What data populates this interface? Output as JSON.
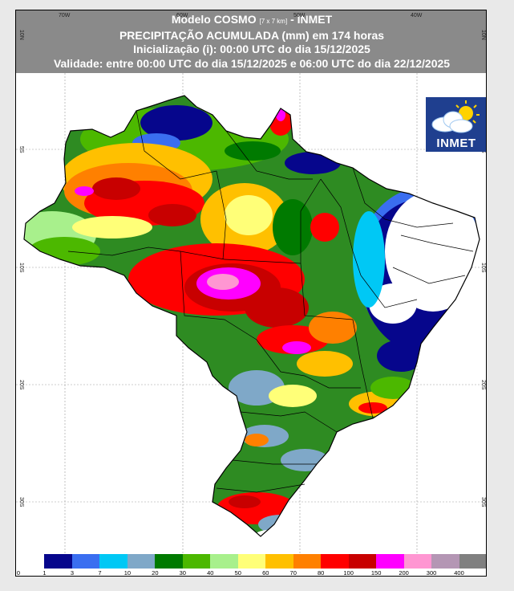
{
  "header": {
    "line1_prefix": "Modelo COSMO",
    "line1_res": "[7 x 7 km]",
    "line1_suffix": "- INMET",
    "line2": "PRECIPITAÇÃO ACUMULADA (mm) em 174 horas",
    "line3": "Inicialização (i): 00:00 UTC do dia 15/12/2025",
    "line4": "Validade: entre 00:00 UTC do dia 15/12/2025 e 06:00 UTC do dia 22/12/2025"
  },
  "grid": {
    "top_lon_labels": [
      "70W",
      "60W",
      "50W",
      "40W"
    ],
    "left_lat_labels": [
      "10N",
      "5S",
      "10S",
      "20S",
      "30S"
    ],
    "right_lat_labels": [
      "10N",
      "5S",
      "10S",
      "20S",
      "30S"
    ]
  },
  "logo": {
    "text": "INMET"
  },
  "legend": {
    "colors": [
      "#ffffff",
      "#06068c",
      "#3a6ef0",
      "#00c8f5",
      "#7fa8c8",
      "#007a00",
      "#4cb800",
      "#a8f08c",
      "#ffff78",
      "#ffc000",
      "#ff8000",
      "#ff0000",
      "#c80000",
      "#ff00ff",
      "#ff96d2",
      "#b496b4",
      "#808080"
    ],
    "tick_labels": [
      "0",
      "1",
      "3",
      "7",
      "10",
      "20",
      "30",
      "40",
      "50",
      "60",
      "70",
      "80",
      "100",
      "150",
      "200",
      "300",
      "400"
    ]
  }
}
